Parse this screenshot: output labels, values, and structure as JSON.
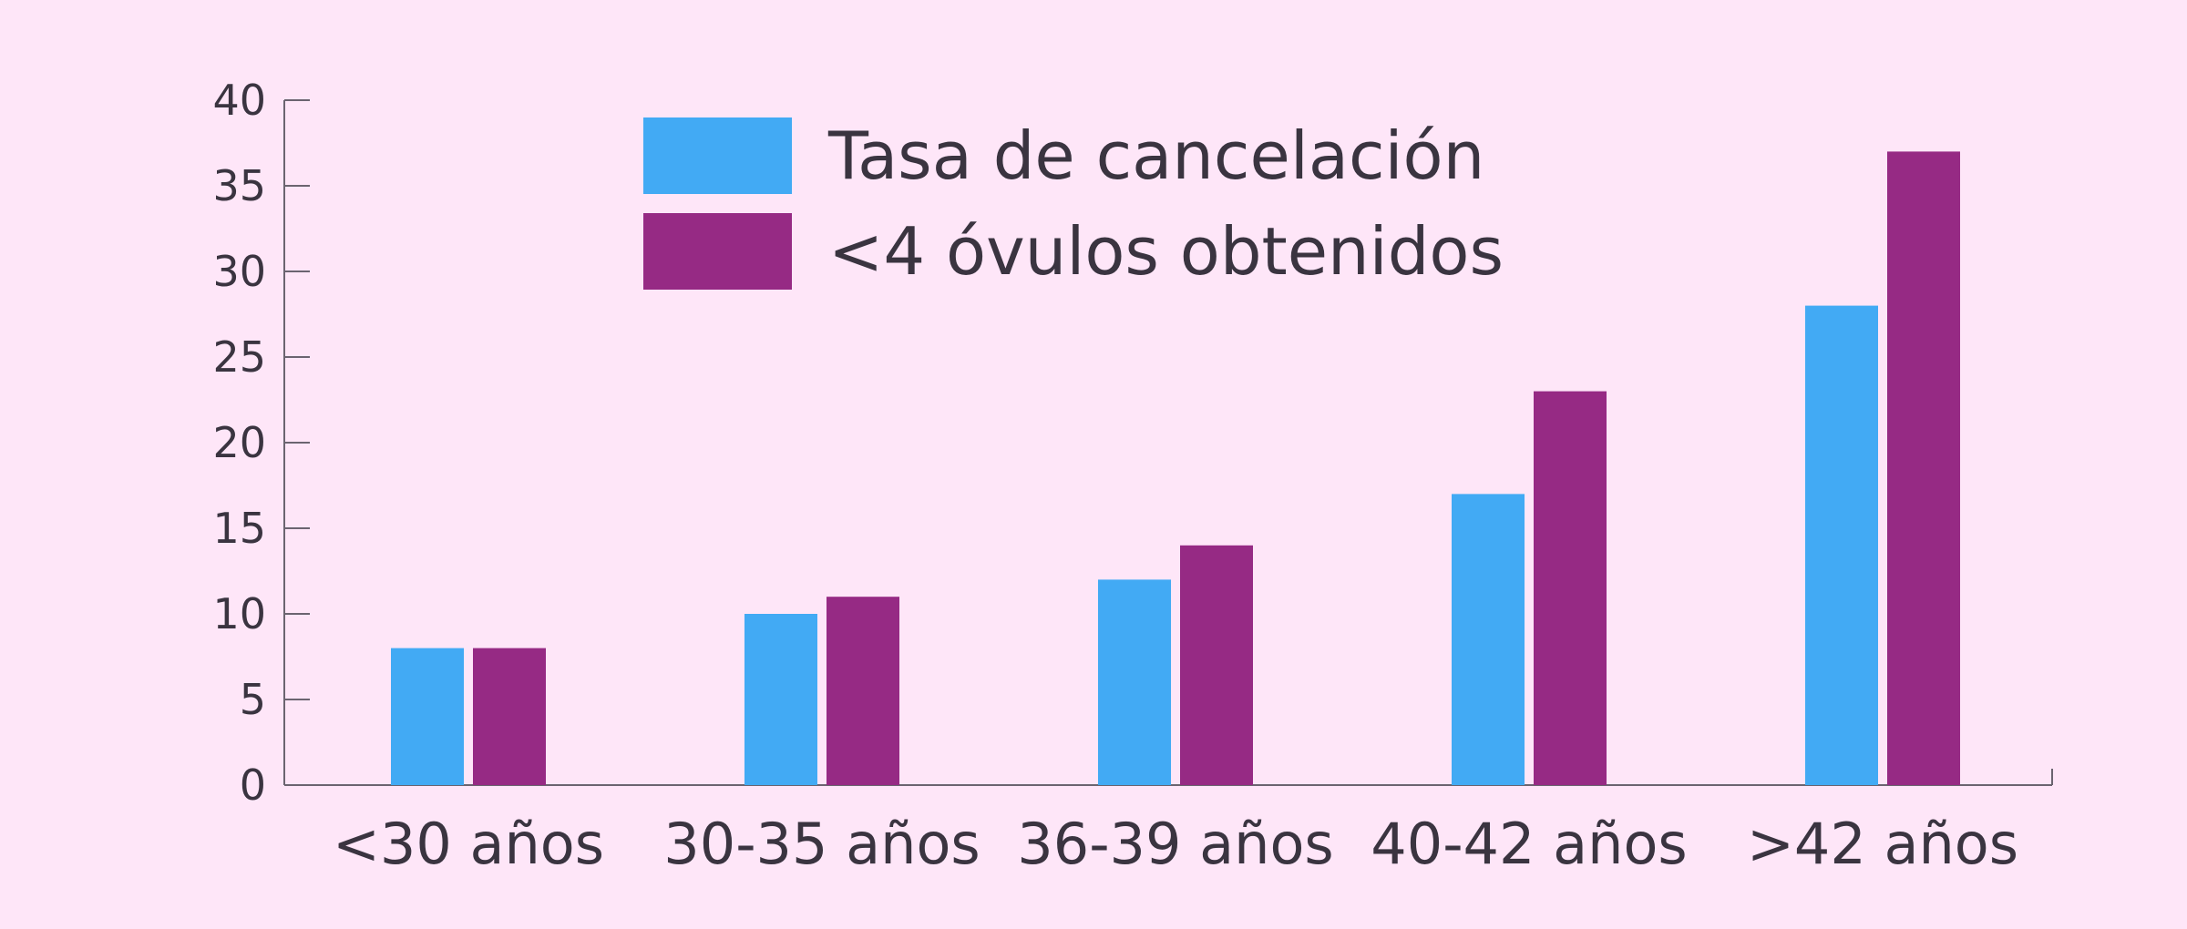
{
  "chart_data": {
    "type": "bar",
    "categories": [
      "<30 años",
      "30-35 años",
      "36-39 años",
      "40-42 años",
      ">42 años"
    ],
    "series": [
      {
        "name": "Tasa de cancelación",
        "values": [
          8,
          10,
          12,
          17,
          28
        ]
      },
      {
        "name": "<4 óvulos obtenidos",
        "values": [
          8,
          11,
          14,
          23,
          37
        ]
      }
    ],
    "yticks": [
      "0",
      "5",
      "10",
      "15",
      "20",
      "25",
      "30",
      "35",
      "40"
    ],
    "ylim": [
      0,
      40
    ],
    "grid": false,
    "legend_position": "top-left",
    "colors": {
      "background": "#fee6f8",
      "series": [
        "#42aaf4",
        "#962a84"
      ],
      "axis": "#6b6470",
      "text": "#3a3440"
    }
  }
}
